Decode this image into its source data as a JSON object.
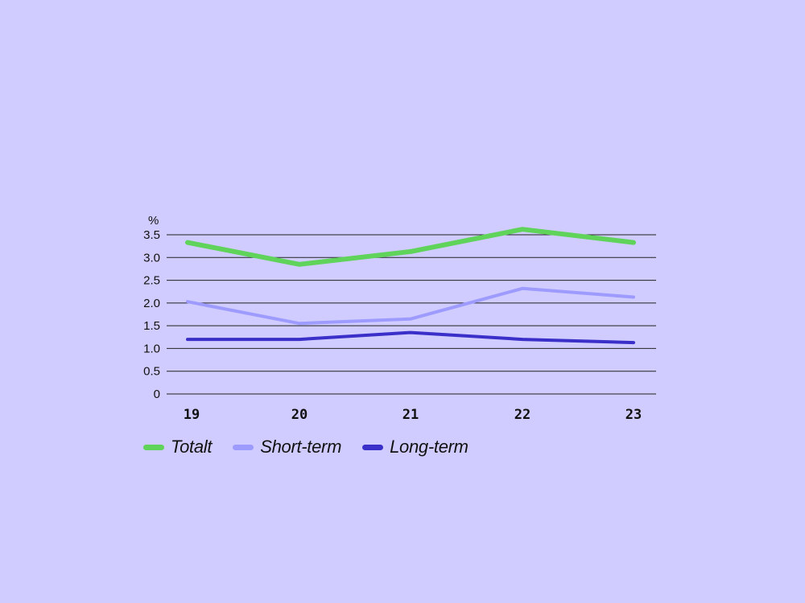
{
  "chart_data": {
    "type": "line",
    "ylabel": "%",
    "ylim": [
      0,
      3.5
    ],
    "yticks": [
      "0",
      "0.5",
      "1.0",
      "1.5",
      "2.0",
      "2.5",
      "3.0",
      "3.5"
    ],
    "categories": [
      "19",
      "20",
      "21",
      "22",
      "23"
    ],
    "grid": true,
    "legend_position": "bottom-left",
    "series": [
      {
        "name": "Totalt",
        "color": "#5fd35a",
        "values": [
          3.33,
          2.85,
          3.13,
          3.62,
          3.33
        ]
      },
      {
        "name": "Short-term",
        "color": "#9e9bff",
        "values": [
          2.03,
          1.55,
          1.65,
          2.32,
          2.13
        ]
      },
      {
        "name": "Long-term",
        "color": "#3a2fc8",
        "values": [
          1.2,
          1.2,
          1.35,
          1.2,
          1.13
        ]
      }
    ]
  }
}
